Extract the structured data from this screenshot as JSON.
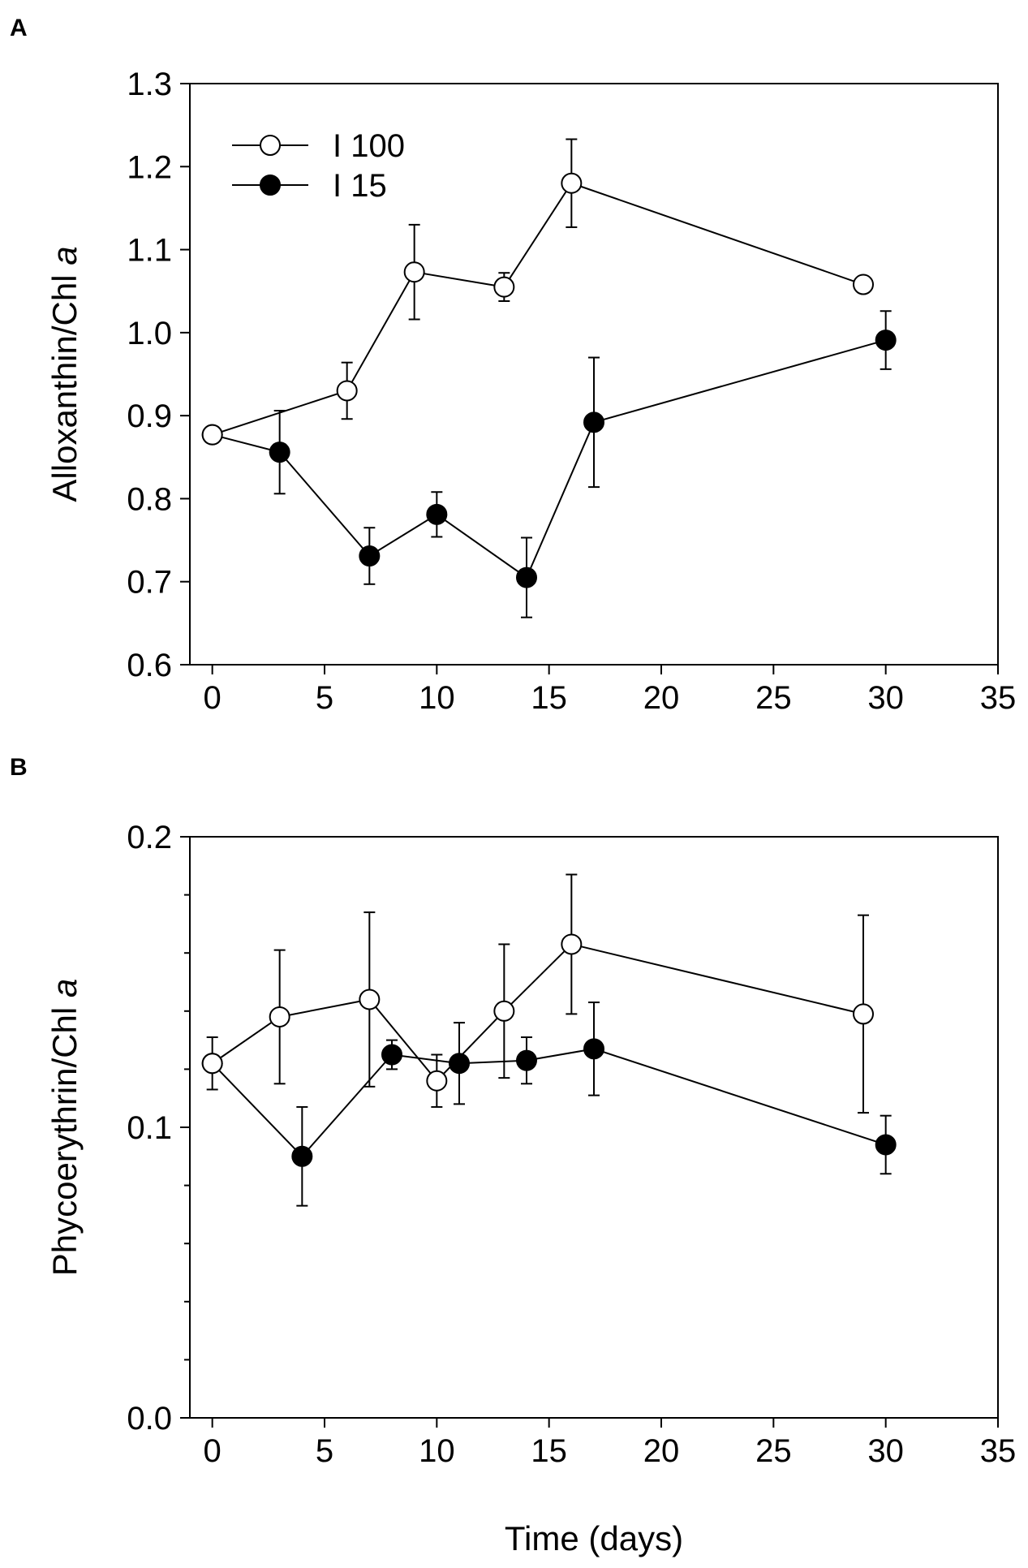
{
  "colors": {
    "ink": "#000000",
    "open_fill": "#ffffff",
    "filled_fill": "#000000"
  },
  "chart_data": [
    {
      "type": "line",
      "panel_label": "A",
      "title": "",
      "xlabel": "",
      "ylabel": "Alloxanthin/Chl ",
      "ylabel_italic": "a",
      "xlim": [
        -1,
        35
      ],
      "ylim": [
        0.6,
        1.3
      ],
      "xticks": [
        0,
        5,
        10,
        15,
        20,
        25,
        30,
        35
      ],
      "xtick_labels": [
        "0",
        "5",
        "10",
        "15",
        "20",
        "25",
        "30",
        "35"
      ],
      "yticks": [
        0.6,
        0.7,
        0.8,
        0.9,
        1.0,
        1.1,
        1.2,
        1.3
      ],
      "ytick_labels": [
        "0.6",
        "0.7",
        "0.8",
        "0.9",
        "1.0",
        "1.1",
        "1.2",
        "1.3"
      ],
      "legend_position": "top-left",
      "series": [
        {
          "name": "I 100",
          "marker": "open-circle",
          "x": [
            0,
            6,
            9,
            13,
            16,
            29
          ],
          "y": [
            0.877,
            0.93,
            1.073,
            1.055,
            1.18,
            1.058
          ],
          "yerr": [
            0.0,
            0.034,
            0.057,
            0.017,
            0.053,
            0.0
          ]
        },
        {
          "name": "I 15",
          "marker": "filled-circle",
          "x": [
            0,
            3,
            7,
            10,
            14,
            17,
            30
          ],
          "y": [
            0.877,
            0.856,
            0.731,
            0.781,
            0.705,
            0.892,
            0.991
          ],
          "yerr": [
            0.0,
            0.05,
            0.034,
            0.027,
            0.048,
            0.078,
            0.035
          ]
        }
      ]
    },
    {
      "type": "line",
      "panel_label": "B",
      "title": "",
      "xlabel": "Time (days)",
      "ylabel": "Phycoerythrin/Chl ",
      "ylabel_italic": "a",
      "xlim": [
        -1,
        35
      ],
      "ylim": [
        0.0,
        0.2
      ],
      "xticks": [
        0,
        5,
        10,
        15,
        20,
        25,
        30,
        35
      ],
      "xtick_labels": [
        "0",
        "5",
        "10",
        "15",
        "20",
        "25",
        "30",
        "35"
      ],
      "yticks": [
        0.0,
        0.1,
        0.2
      ],
      "ytick_labels": [
        "0.0",
        "0.1",
        "0.2"
      ],
      "minor_yticks": [
        0.02,
        0.04,
        0.06,
        0.08,
        0.12,
        0.14,
        0.16,
        0.18
      ],
      "series": [
        {
          "name": "I 100",
          "marker": "open-circle",
          "x": [
            0,
            3,
            7,
            10,
            13,
            16,
            29
          ],
          "y": [
            0.122,
            0.138,
            0.144,
            0.116,
            0.14,
            0.163,
            0.139
          ],
          "yerr": [
            0.0,
            0.023,
            0.03,
            0.009,
            0.023,
            0.024,
            0.034
          ]
        },
        {
          "name": "I 15",
          "marker": "filled-circle",
          "x": [
            0,
            4,
            8,
            11,
            14,
            17,
            30
          ],
          "y": [
            0.122,
            0.09,
            0.125,
            0.122,
            0.123,
            0.127,
            0.094
          ],
          "yerr": [
            0.009,
            0.017,
            0.005,
            0.014,
            0.008,
            0.016,
            0.01
          ]
        }
      ]
    }
  ]
}
